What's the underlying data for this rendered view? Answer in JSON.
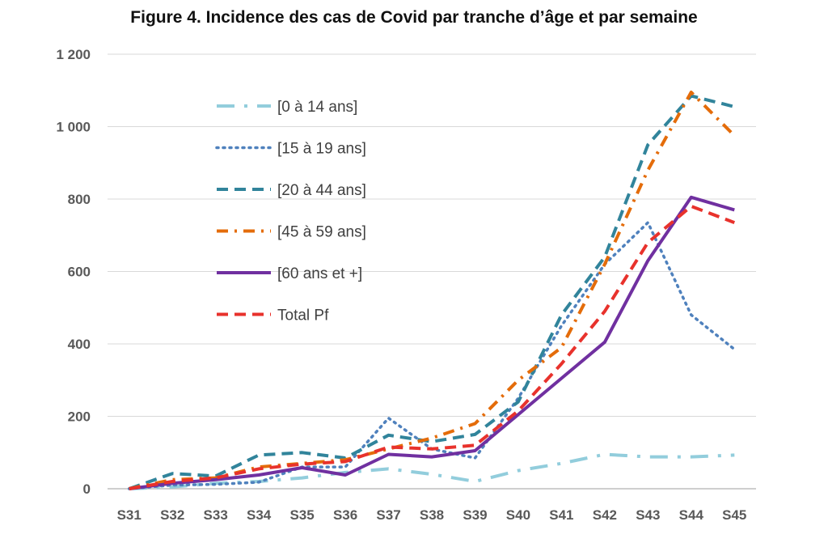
{
  "chart_data": {
    "type": "line",
    "title": "Figure 4. Incidence des cas de Covid par tranche d’âge et par semaine",
    "xlabel": "",
    "ylabel": "",
    "categories": [
      "S31",
      "S32",
      "S33",
      "S34",
      "S35",
      "S36",
      "S37",
      "S38",
      "S39",
      "S40",
      "S41",
      "S42",
      "S43",
      "S44",
      "S45"
    ],
    "ylim": [
      0,
      1200
    ],
    "yticks": [
      0,
      200,
      400,
      600,
      800,
      1000,
      1200
    ],
    "ytick_labels": [
      "0",
      "200",
      "400",
      "600",
      "800",
      "1 000",
      "1 200"
    ],
    "grid": true,
    "legend_position": "upper-left",
    "series": [
      {
        "name": "[0 à 14 ans]",
        "color": "#92cddc",
        "dash": "long-dash-dot",
        "values": [
          0,
          5,
          15,
          20,
          30,
          45,
          55,
          40,
          20,
          50,
          70,
          95,
          88,
          88,
          93
        ]
      },
      {
        "name": "[15 à 19 ans]",
        "color": "#4f81bd",
        "dash": "dot",
        "values": [
          0,
          10,
          12,
          18,
          60,
          60,
          195,
          110,
          85,
          250,
          450,
          620,
          735,
          480,
          385
        ]
      },
      {
        "name": "[20 à 44 ans]",
        "color": "#31849b",
        "dash": "dash",
        "values": [
          0,
          42,
          35,
          93,
          100,
          85,
          148,
          130,
          150,
          240,
          480,
          640,
          950,
          1085,
          1055
        ]
      },
      {
        "name": "[45 à 59 ans]",
        "color": "#e46c0a",
        "dash": "dash-dot",
        "values": [
          0,
          25,
          30,
          60,
          70,
          80,
          110,
          140,
          180,
          300,
          390,
          620,
          880,
          1095,
          975
        ]
      },
      {
        "name": "[60 ans et +]",
        "color": "#7030a0",
        "dash": "solid",
        "values": [
          0,
          15,
          25,
          38,
          58,
          38,
          95,
          88,
          105,
          205,
          305,
          405,
          630,
          805,
          770
        ]
      },
      {
        "name": "Total Pf",
        "color": "#e8322c",
        "dash": "dash",
        "values": [
          0,
          20,
          30,
          55,
          68,
          75,
          115,
          110,
          120,
          215,
          345,
          490,
          680,
          780,
          735
        ]
      }
    ]
  }
}
